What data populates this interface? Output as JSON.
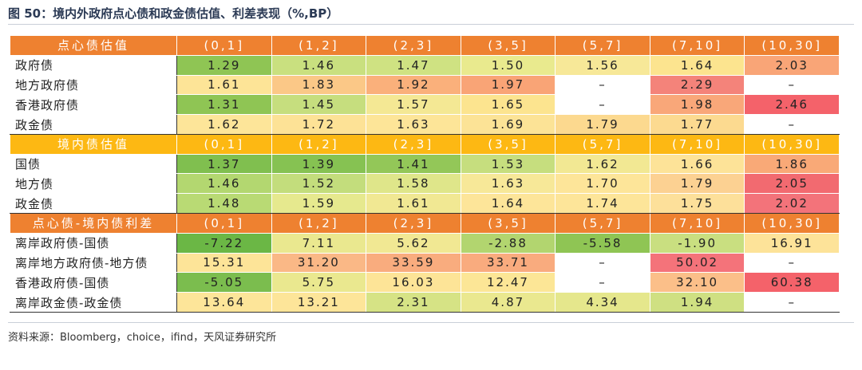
{
  "title": "图 50：境内外政府点心债和政金债估值、利差表现（%,BP）",
  "source": "资料来源：Bloomberg，choice，ifind，天风证券研究所",
  "sections": [
    {
      "header": "点心债估值",
      "header_style": "orange",
      "columns": [
        "(0,1]",
        "(1,2]",
        "(2,3]",
        "(3,5]",
        "(5,7]",
        "(7,10]",
        "(10,30]"
      ],
      "rows": [
        {
          "label": "政府债",
          "values": [
            "1.29",
            "1.46",
            "1.47",
            "1.50",
            "1.56",
            "1.64",
            "2.03"
          ],
          "colors": [
            "#8fc554",
            "#c9e07f",
            "#cfe282",
            "#e9ea8e",
            "#f7e898",
            "#fce48f",
            "#f9a577"
          ]
        },
        {
          "label": "地方政府债",
          "values": [
            "1.61",
            "1.83",
            "1.92",
            "1.97",
            "–",
            "2.29",
            "–"
          ],
          "colors": [
            "#fde497",
            "#fbc887",
            "#fab07b",
            "#f9a476",
            "#ffffff",
            "#f4837a",
            "#ffffff"
          ]
        },
        {
          "label": "香港政府债",
          "values": [
            "1.31",
            "1.45",
            "1.57",
            "1.65",
            "–",
            "1.98",
            "2.46"
          ],
          "colors": [
            "#8fc554",
            "#c6de7e",
            "#f4e894",
            "#fce48f",
            "#ffffff",
            "#f9a779",
            "#f4626a"
          ]
        },
        {
          "label": "政金债",
          "values": [
            "1.62",
            "1.72",
            "1.63",
            "1.69",
            "1.79",
            "1.77",
            "–"
          ],
          "colors": [
            "#fde599",
            "#fde296",
            "#fde598",
            "#fce396",
            "#fcd98f",
            "#fcda90",
            "#ffffff"
          ]
        }
      ]
    },
    {
      "header": "境内债估值",
      "header_style": "yellow",
      "columns": [
        "(0,1]",
        "(1,2]",
        "(2,3]",
        "(3,5]",
        "(5,7]",
        "(7,10]",
        "(10,30]"
      ],
      "rows": [
        {
          "label": "国债",
          "values": [
            "1.37",
            "1.39",
            "1.41",
            "1.53",
            "1.62",
            "1.66",
            "1.86"
          ],
          "colors": [
            "#80bf4f",
            "#86c252",
            "#93c758",
            "#c6de7e",
            "#f2e893",
            "#fde398",
            "#f9a977"
          ]
        },
        {
          "label": "地方债",
          "values": [
            "1.46",
            "1.52",
            "1.58",
            "1.63",
            "1.70",
            "1.79",
            "2.05"
          ],
          "colors": [
            "#b3d770",
            "#c3dd7c",
            "#dfe68a",
            "#f7e898",
            "#fde599",
            "#fcd192",
            "#f26a70"
          ]
        },
        {
          "label": "政金债",
          "values": [
            "1.48",
            "1.59",
            "1.61",
            "1.64",
            "1.74",
            "1.75",
            "2.02"
          ],
          "colors": [
            "#b9da74",
            "#e6e98e",
            "#f1e893",
            "#fde599",
            "#fde599",
            "#fde09a",
            "#f3737a"
          ]
        }
      ]
    },
    {
      "header": "点心债-境内债利差",
      "header_style": "orange",
      "columns": [
        "(0,1]",
        "(1,2]",
        "(2,3]",
        "(3,5]",
        "(5,7]",
        "(7,10]",
        "(10,30]"
      ],
      "rows": [
        {
          "label": "离岸政府债-国债",
          "values": [
            "-7.22",
            "7.11",
            "5.62",
            "-2.88",
            "-5.58",
            "-1.90",
            "16.91"
          ],
          "colors": [
            "#6bb745",
            "#eae88f",
            "#f1e893",
            "#b2d56f",
            "#8fc554",
            "#c9df80",
            "#fde399"
          ]
        },
        {
          "label": "离岸地方政府债-地方债",
          "values": [
            "15.31",
            "31.20",
            "33.59",
            "33.71",
            "–",
            "50.02",
            "–"
          ],
          "colors": [
            "#fde498",
            "#fab886",
            "#f9ac7e",
            "#f9ab7e",
            "#ffffff",
            "#f4737a",
            "#ffffff"
          ]
        },
        {
          "label": "香港政府债-国债",
          "values": [
            "-5.05",
            "5.75",
            "16.03",
            "12.47",
            "–",
            "32.10",
            "60.38"
          ],
          "colors": [
            "#7bbd4e",
            "#eae88f",
            "#fde497",
            "#fce696",
            "#ffffff",
            "#fbbf89",
            "#f4626a"
          ]
        },
        {
          "label": "离岸政金债-政金债",
          "values": [
            "13.64",
            "13.21",
            "2.31",
            "4.87",
            "4.34",
            "1.94",
            "–"
          ],
          "colors": [
            "#fde599",
            "#fde599",
            "#d6e385",
            "#eae88f",
            "#e5e78c",
            "#cfe082",
            "#ffffff"
          ]
        }
      ]
    }
  ]
}
